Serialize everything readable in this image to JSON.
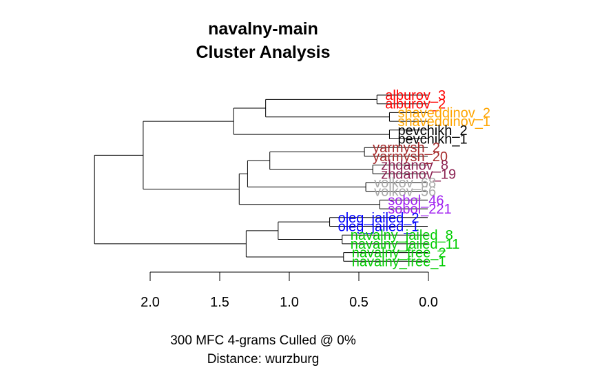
{
  "title_line1": "navalny-main",
  "title_line2": "Cluster Analysis",
  "caption_line1": "300 MFC 4-grams Culled @ 0%",
  "caption_line2": "Distance: wurzburg",
  "chart_data": {
    "type": "dendrogram",
    "orientation": "horizontal",
    "x_axis": {
      "ticks": [
        2.0,
        1.5,
        1.0,
        0.5,
        0.0
      ],
      "tick_labels": [
        "2.0",
        "1.5",
        "1.0",
        "0.5",
        "0.0"
      ],
      "range": [
        2.0,
        0.0
      ]
    },
    "leaves": [
      {
        "label": "alburov_3",
        "color": "#FF0000",
        "height": 0.37
      },
      {
        "label": "alburov_2",
        "color": "#FF0000",
        "height": 0.37
      },
      {
        "label": "shaveddinov_2",
        "color": "#FFA500",
        "height": 0.28
      },
      {
        "label": "shaveddinov_1",
        "color": "#FFA500",
        "height": 0.28
      },
      {
        "label": "pevchikh_2",
        "color": "#000000",
        "height": 0.28
      },
      {
        "label": "pevchikh_1",
        "color": "#000000",
        "height": 0.28
      },
      {
        "label": "yarmysh_2",
        "color": "#A52A2A",
        "height": 0.46
      },
      {
        "label": "yarmysh_20",
        "color": "#A52A2A",
        "height": 0.46
      },
      {
        "label": "zhdanov_8",
        "color": "#8B2252",
        "height": 0.4
      },
      {
        "label": "zhdanov_19",
        "color": "#8B2252",
        "height": 0.4
      },
      {
        "label": "volkov_68",
        "color": "#A9A9A9",
        "height": 0.45
      },
      {
        "label": "volkov_56",
        "color": "#A9A9A9",
        "height": 0.45
      },
      {
        "label": "sobol_46",
        "color": "#A020F0",
        "height": 0.35
      },
      {
        "label": "sobol_221",
        "color": "#A020F0",
        "height": 0.35
      },
      {
        "label": "oleg_jailed_2",
        "color": "#0000FF",
        "height": 0.71
      },
      {
        "label": "oleg_jailed_1",
        "color": "#0000FF",
        "height": 0.71
      },
      {
        "label": "navalny_jailed_8",
        "color": "#00CD00",
        "height": 0.62
      },
      {
        "label": "navalny_jailed_11",
        "color": "#00CD00",
        "height": 0.62
      },
      {
        "label": "navalny_free_2",
        "color": "#00CD00",
        "height": 0.61
      },
      {
        "label": "navalny_free_1",
        "color": "#00CD00",
        "height": 0.61
      }
    ],
    "merges": [
      {
        "id": "n1",
        "children": [
          "alburov_3",
          "alburov_2"
        ],
        "height": 0.37
      },
      {
        "id": "n2",
        "children": [
          "shaveddinov_2",
          "shaveddinov_1"
        ],
        "height": 0.28
      },
      {
        "id": "n3",
        "children": [
          "n1",
          "n2"
        ],
        "height": 1.17
      },
      {
        "id": "n4",
        "children": [
          "pevchikh_2",
          "pevchikh_1"
        ],
        "height": 0.28
      },
      {
        "id": "n5",
        "children": [
          "n3",
          "n4"
        ],
        "height": 1.4
      },
      {
        "id": "n6",
        "children": [
          "yarmysh_2",
          "yarmysh_20"
        ],
        "height": 0.46
      },
      {
        "id": "n7",
        "children": [
          "zhdanov_8",
          "zhdanov_19"
        ],
        "height": 0.4
      },
      {
        "id": "n8",
        "children": [
          "n6",
          "n7"
        ],
        "height": 1.14
      },
      {
        "id": "n9",
        "children": [
          "volkov_68",
          "volkov_56"
        ],
        "height": 0.45
      },
      {
        "id": "n10",
        "children": [
          "n8",
          "n9"
        ],
        "height": 1.3
      },
      {
        "id": "n11",
        "children": [
          "sobol_46",
          "sobol_221"
        ],
        "height": 0.35
      },
      {
        "id": "n12",
        "children": [
          "n10",
          "n11"
        ],
        "height": 1.36
      },
      {
        "id": "n13",
        "children": [
          "n5",
          "n12"
        ],
        "height": 2.05
      },
      {
        "id": "n14",
        "children": [
          "oleg_jailed_2",
          "oleg_jailed_1"
        ],
        "height": 0.71
      },
      {
        "id": "n15",
        "children": [
          "navalny_jailed_8",
          "navalny_jailed_11"
        ],
        "height": 0.62
      },
      {
        "id": "n16",
        "children": [
          "n14",
          "n15"
        ],
        "height": 1.08
      },
      {
        "id": "n17",
        "children": [
          "navalny_free_2",
          "navalny_free_1"
        ],
        "height": 0.61
      },
      {
        "id": "n18",
        "children": [
          "n16",
          "n17"
        ],
        "height": 1.31
      },
      {
        "id": "n19",
        "children": [
          "n13",
          "n18"
        ],
        "height": 2.4
      }
    ]
  }
}
